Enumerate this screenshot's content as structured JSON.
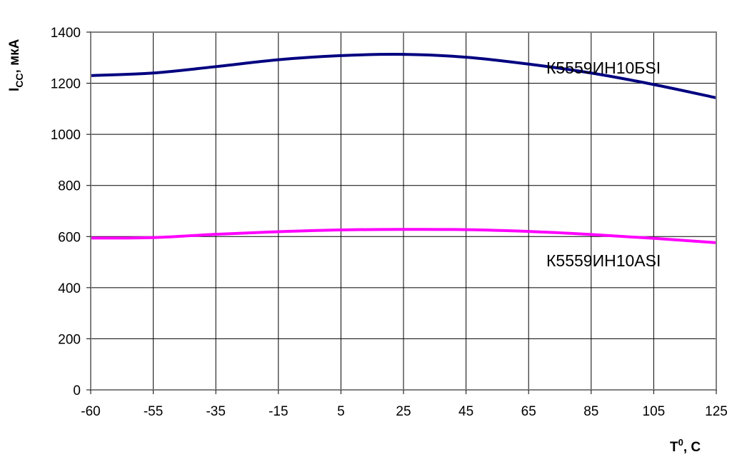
{
  "chart_data": {
    "type": "line",
    "x": [
      "-60",
      "-55",
      "-35",
      "-15",
      "5",
      "25",
      "45",
      "65",
      "85",
      "105",
      "125"
    ],
    "ylim": [
      0,
      1400
    ],
    "yticks": [
      "0",
      "200",
      "400",
      "600",
      "800",
      "1000",
      "1200",
      "1400"
    ],
    "grid": true,
    "ylabel": {
      "main": "I",
      "sub": "CC",
      "rest": ", мкА"
    },
    "xlabel": {
      "main": "T",
      "sup": "0",
      "rest": ", C"
    },
    "series": [
      {
        "name": "К5559ИН10БSI",
        "color": "#000080",
        "values": [
          1230,
          1240,
          1265,
          1292,
          1308,
          1313,
          1302,
          1275,
          1240,
          1195,
          1143
        ]
      },
      {
        "name": "К5559ИН10ASI",
        "color": "#FF00FF",
        "values": [
          594,
          596,
          609,
          619,
          626,
          628,
          627,
          620,
          608,
          593,
          576
        ]
      }
    ]
  }
}
